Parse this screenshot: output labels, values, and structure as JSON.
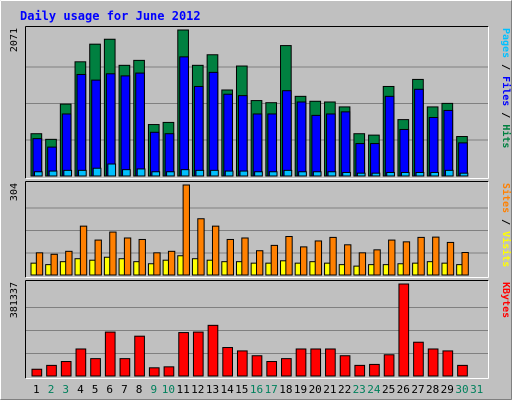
{
  "chart_data": {
    "type": "bar",
    "title": "Daily usage for June 2012",
    "x": [
      "1",
      "2",
      "3",
      "4",
      "5",
      "6",
      "7",
      "8",
      "9",
      "10",
      "11",
      "12",
      "13",
      "14",
      "15",
      "16",
      "17",
      "18",
      "19",
      "20",
      "21",
      "22",
      "23",
      "24",
      "25",
      "26",
      "27",
      "28",
      "29",
      "30",
      "31"
    ],
    "weekend_days": [
      "2",
      "3",
      "9",
      "10",
      "16",
      "17",
      "23",
      "24",
      "30",
      "31"
    ],
    "colors": {
      "background": "#c0c0c0",
      "title": "#0000ff",
      "hits": "#008040",
      "files": "#0000ff",
      "pages": "#00c0ff",
      "visits": "#ffff00",
      "sites": "#ff8000",
      "kbytes": "#ff0000",
      "weekday_label": "#000000",
      "weekend_label": "#00805c"
    },
    "panels": [
      {
        "id": "hits_files_pages",
        "max_label": "2071",
        "ymax": 2071,
        "legend": [
          {
            "text": "Pages",
            "color": "#00c0ff"
          },
          {
            "text": " / ",
            "color": "#000000"
          },
          {
            "text": "Files",
            "color": "#0000ff"
          },
          {
            "text": " / ",
            "color": "#000000"
          },
          {
            "text": "Hits",
            "color": "#008040"
          }
        ],
        "series": [
          {
            "name": "Hits",
            "values": [
              600,
              520,
              1020,
              1620,
              1870,
              1940,
              1570,
              1640,
              730,
              760,
              2071,
              1570,
              1720,
              1220,
              1560,
              1070,
              1040,
              1850,
              1130,
              1060,
              1050,
              980,
              600,
              580,
              1270,
              800,
              1370,
              980,
              1030,
              560,
              0
            ]
          },
          {
            "name": "Files",
            "values": [
              530,
              410,
              880,
              1440,
              1360,
              1450,
              1420,
              1460,
              620,
              600,
              1690,
              1270,
              1470,
              1160,
              1140,
              880,
              880,
              1210,
              1050,
              860,
              880,
              910,
              460,
              460,
              1130,
              660,
              1230,
              830,
              930,
              470,
              0
            ]
          },
          {
            "name": "Pages",
            "values": [
              60,
              70,
              80,
              80,
              110,
              170,
              90,
              100,
              60,
              60,
              90,
              80,
              80,
              70,
              70,
              60,
              60,
              80,
              60,
              60,
              60,
              50,
              40,
              40,
              50,
              50,
              50,
              50,
              80,
              40,
              0
            ]
          }
        ]
      },
      {
        "id": "visits_sites",
        "max_label": "304",
        "ymax": 304,
        "legend": [
          {
            "text": "Sites",
            "color": "#ff8000"
          },
          {
            "text": " / ",
            "color": "#000000"
          },
          {
            "text": "Visits",
            "color": "#ffff00"
          }
        ],
        "series": [
          {
            "name": "Sites",
            "values": [
              75,
              70,
              80,
              165,
              118,
              145,
              125,
              120,
              75,
              80,
              304,
              190,
              165,
              120,
              125,
              82,
              100,
              130,
              95,
              115,
              127,
              102,
              75,
              85,
              118,
              112,
              127,
              128,
              110,
              76,
              0
            ]
          },
          {
            "name": "Visits",
            "values": [
              40,
              35,
              45,
              55,
              50,
              60,
              55,
              45,
              38,
              50,
              65,
              55,
              50,
              45,
              45,
              40,
              40,
              48,
              40,
              45,
              40,
              35,
              30,
              35,
              35,
              38,
              40,
              45,
              40,
              35,
              0
            ]
          }
        ]
      },
      {
        "id": "kbytes",
        "max_label": "381337",
        "ymax": 381337,
        "legend": [
          {
            "text": "KBytes",
            "color": "#ff0000"
          }
        ],
        "series": [
          {
            "name": "KBytes",
            "values": [
              28000,
              44000,
              60000,
              112000,
              72000,
              182000,
              72000,
              165000,
              34000,
              38000,
              180000,
              182000,
              210000,
              118000,
              104000,
              84000,
              60000,
              72000,
              112000,
              112000,
              112000,
              84000,
              44000,
              48000,
              88000,
              381337,
              140000,
              112000,
              104000,
              44000,
              0
            ]
          }
        ]
      }
    ]
  }
}
